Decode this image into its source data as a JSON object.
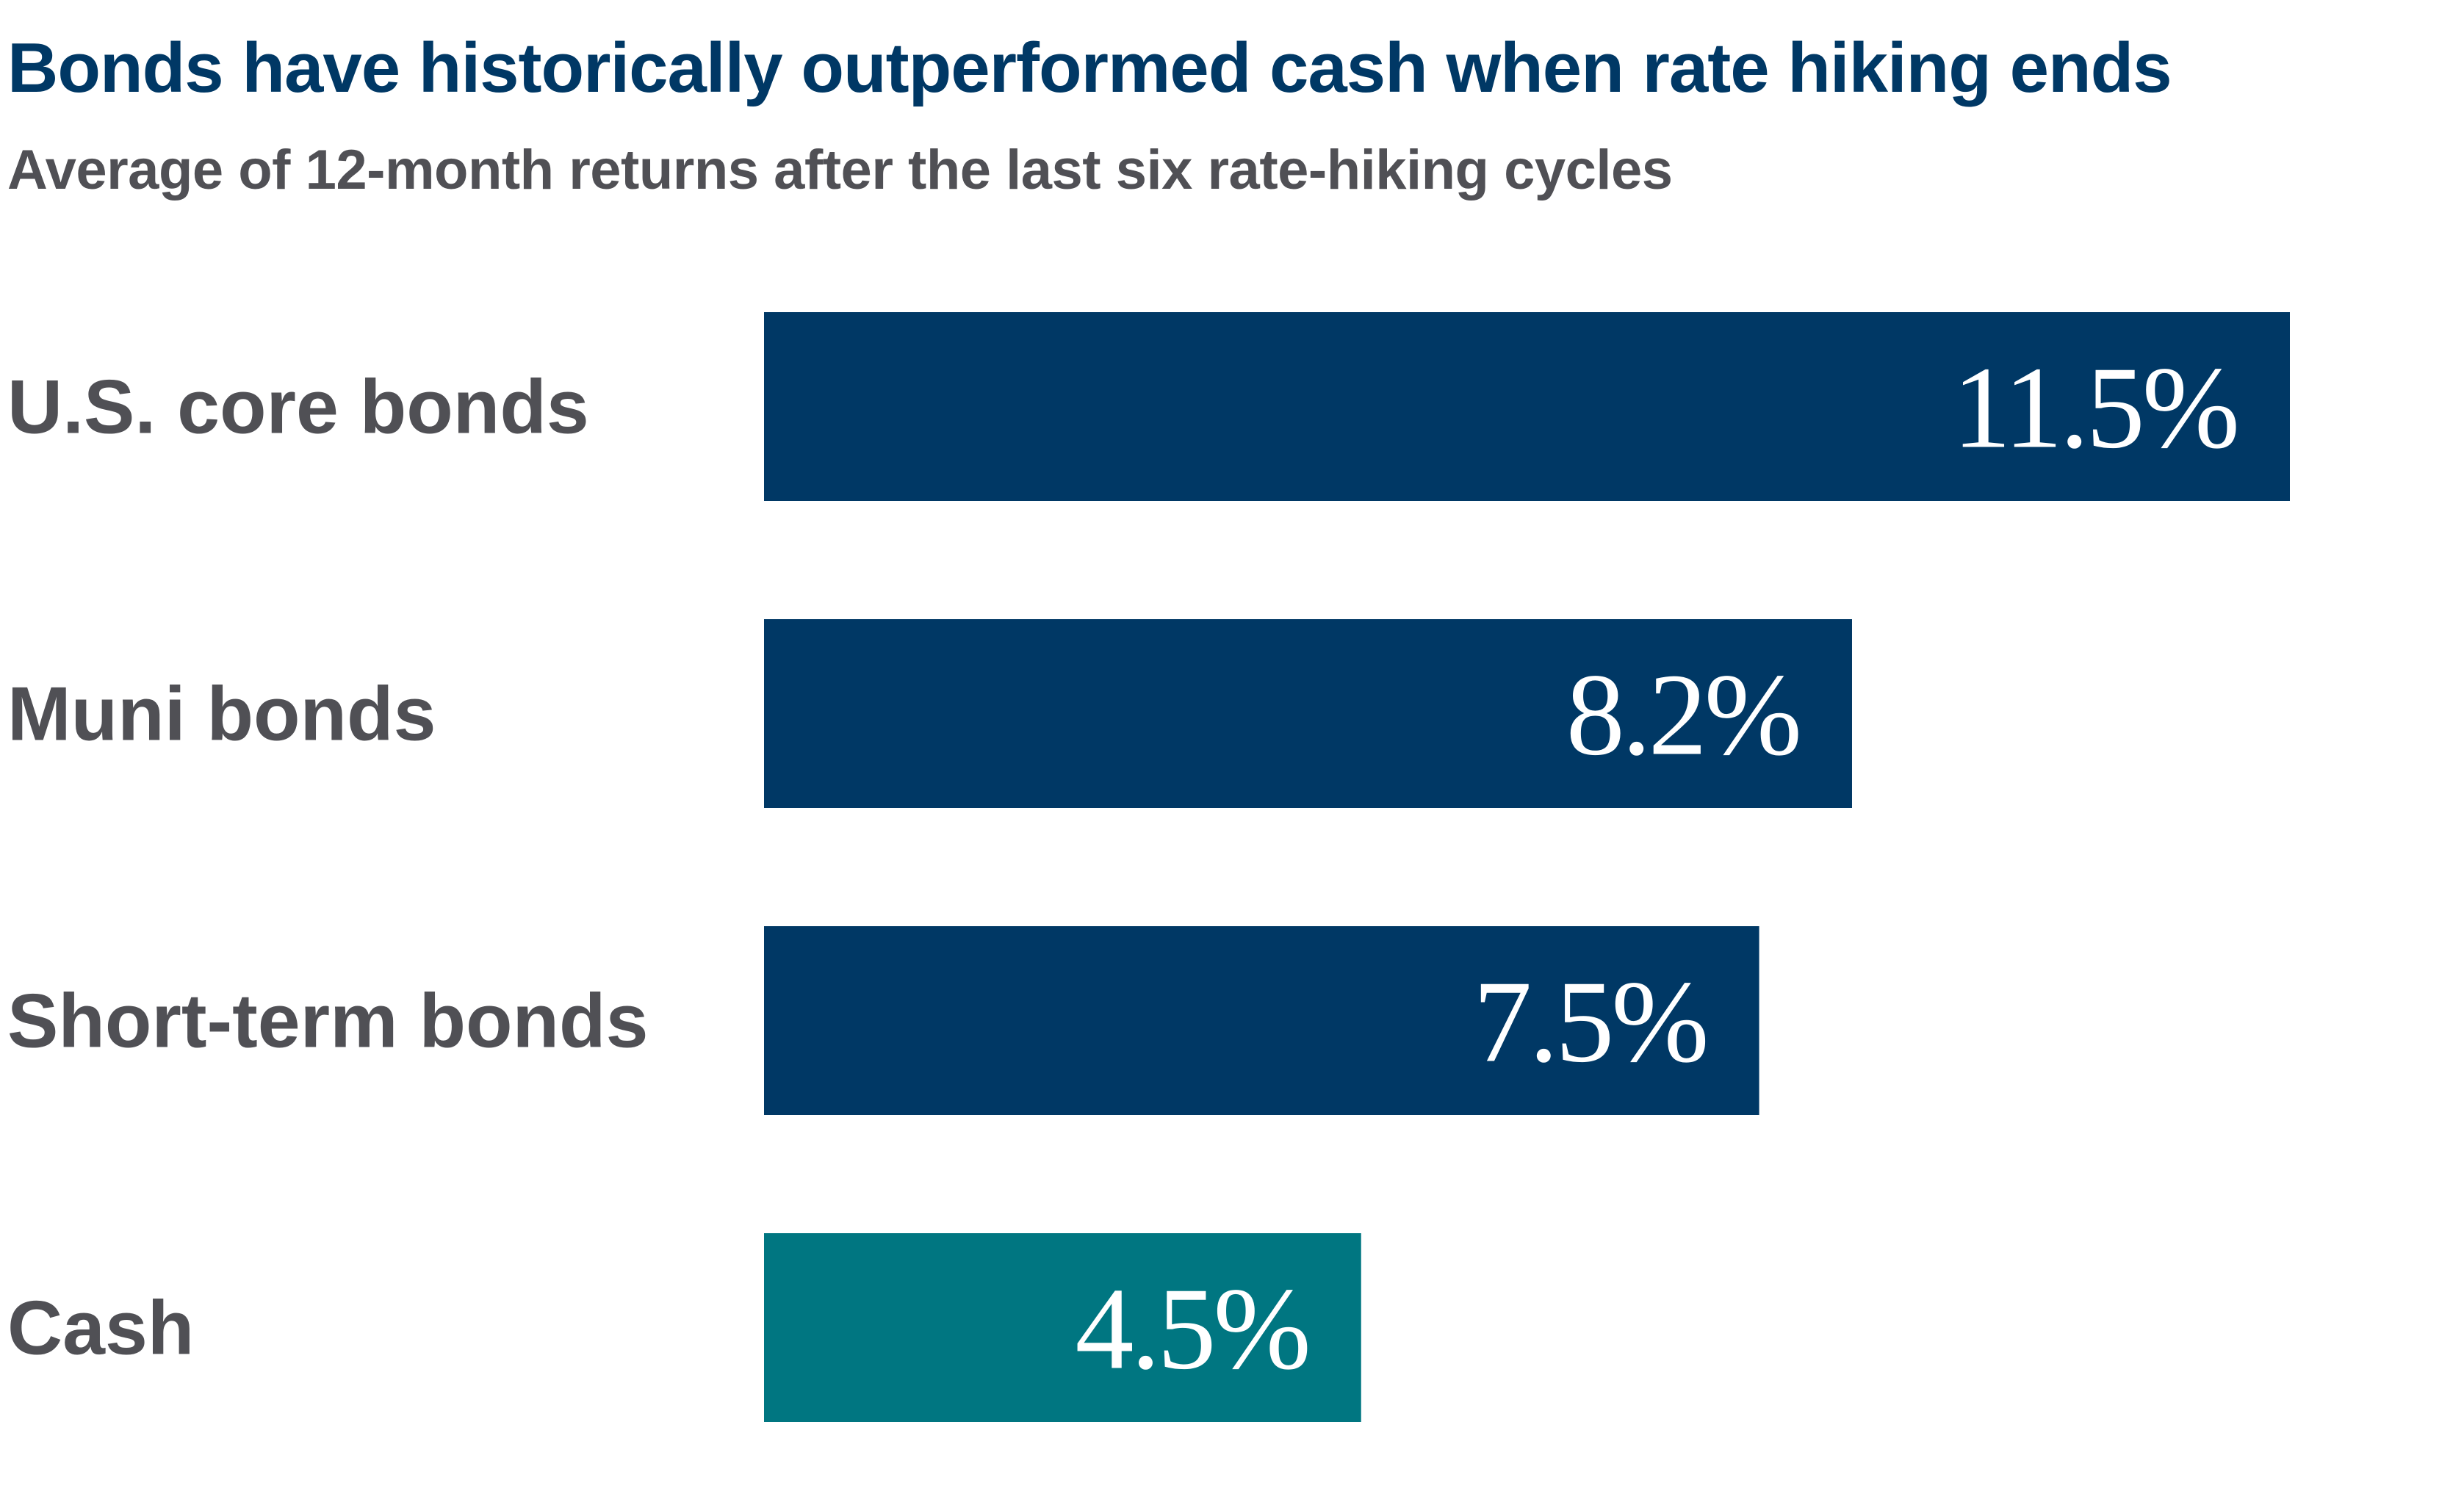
{
  "chart_data": {
    "type": "bar",
    "orientation": "horizontal",
    "title": "Bonds have historically outperformed cash when rate hiking ends",
    "subtitle": "Average of 12-month returns after the last six rate-hiking cycles",
    "categories": [
      "U.S. core bonds",
      "Muni bonds",
      "Short-term bonds",
      "Cash"
    ],
    "values": [
      11.5,
      8.2,
      7.5,
      4.5
    ],
    "value_labels": [
      "11.5%",
      "8.2%",
      "7.5%",
      "4.5%"
    ],
    "colors": [
      "#003865",
      "#003865",
      "#003865",
      "#007681"
    ],
    "xlim": [
      0,
      11.5
    ],
    "grid": false,
    "legend": "none"
  }
}
